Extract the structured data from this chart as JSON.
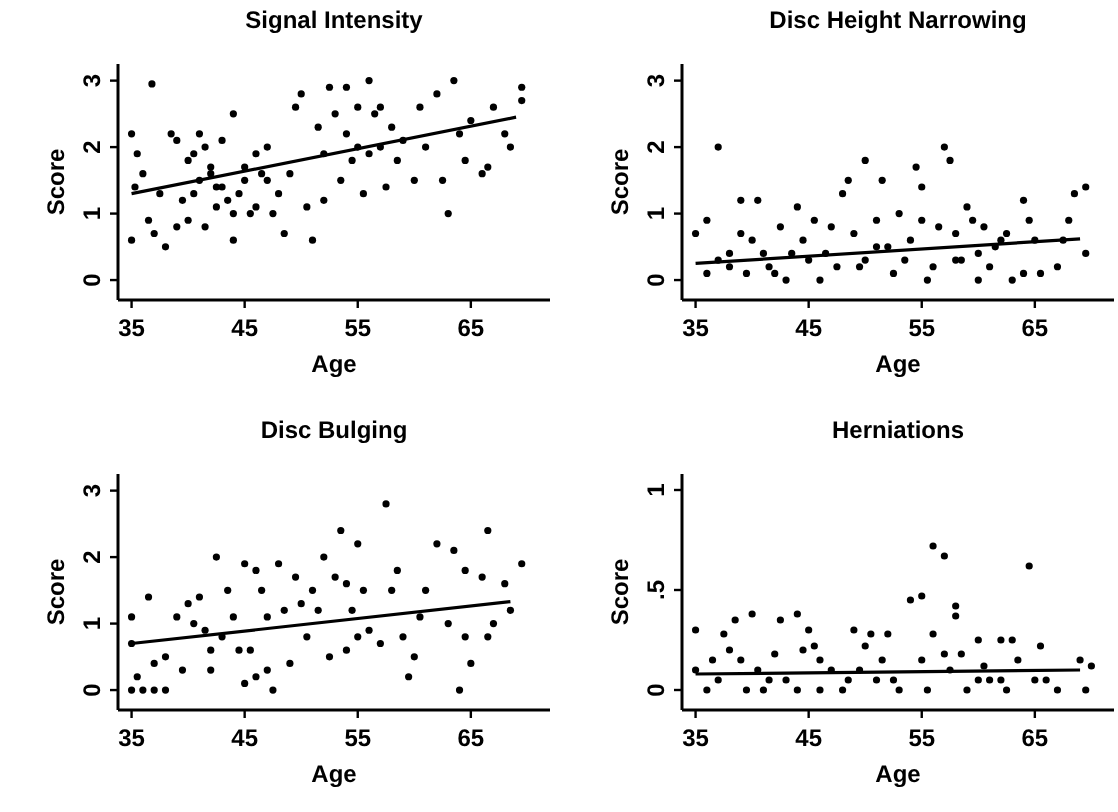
{
  "chart_data": [
    {
      "type": "scatter",
      "title": "Signal Intensity",
      "xlabel": "Age",
      "ylabel": "Score",
      "xlim": [
        33.8,
        72
      ],
      "ylim": [
        -0.3,
        3.25
      ],
      "xticks": [
        35,
        45,
        55,
        65
      ],
      "yticks": [
        0,
        1,
        2,
        3
      ],
      "grid": false,
      "series": [
        {
          "marker": "circle",
          "color": "#000000",
          "x": [
            36.8,
            35,
            35.5,
            36,
            35.3,
            35,
            36.5,
            37,
            38,
            37.5,
            38.5,
            39,
            40,
            40.5,
            41,
            41.5,
            42,
            42.5,
            43,
            43.5,
            44,
            44,
            45,
            45.5,
            46,
            46.5,
            47,
            47.5,
            48,
            48.5,
            49,
            49.5,
            50,
            50.5,
            51,
            51.5,
            52,
            52.5,
            53,
            53.5,
            54,
            54.5,
            55,
            55.5,
            56,
            56.5,
            57,
            57.5,
            58,
            58.5,
            59,
            60,
            60.5,
            61,
            62,
            62.5,
            63,
            63.5,
            64,
            64.5,
            65,
            66,
            66.5,
            67,
            68,
            68.5,
            69.5,
            69.5,
            39.5,
            40.5,
            41,
            42,
            42.5,
            43,
            44.5,
            45,
            46,
            47,
            39,
            40,
            41.5,
            44,
            52,
            54,
            56,
            57,
            55
          ],
          "values": [
            2.95,
            2.2,
            1.9,
            1.6,
            1.4,
            0.6,
            0.9,
            0.7,
            0.5,
            1.3,
            2.2,
            2.1,
            1.8,
            1.9,
            2.2,
            2.0,
            1.7,
            1.4,
            2.1,
            1.2,
            2.5,
            0.6,
            1.5,
            1.0,
            1.9,
            1.6,
            2.0,
            1.0,
            1.3,
            0.7,
            1.6,
            2.6,
            2.8,
            1.1,
            0.6,
            2.3,
            1.2,
            2.9,
            2.5,
            1.5,
            2.9,
            1.8,
            2.6,
            1.3,
            3.0,
            2.5,
            2.0,
            1.4,
            2.3,
            1.8,
            2.1,
            1.5,
            2.6,
            2.0,
            2.8,
            1.5,
            1.0,
            3.0,
            2.2,
            1.8,
            2.4,
            1.6,
            1.7,
            2.6,
            2.2,
            2.0,
            2.9,
            2.7,
            1.2,
            1.3,
            1.5,
            1.6,
            1.1,
            1.4,
            1.3,
            1.7,
            1.1,
            1.5,
            0.8,
            0.9,
            0.8,
            1.0,
            1.9,
            2.2,
            1.9,
            2.6,
            2.0
          ]
        },
        {
          "type": "line",
          "color": "#000000",
          "x": [
            35,
            69
          ],
          "values": [
            1.3,
            2.45
          ]
        }
      ]
    },
    {
      "type": "scatter",
      "title": "Disc Height Narrowing",
      "xlabel": "Age",
      "ylabel": "Score",
      "xlim": [
        33.8,
        72
      ],
      "ylim": [
        -0.3,
        3.25
      ],
      "xticks": [
        35,
        45,
        55,
        65
      ],
      "yticks": [
        0,
        1,
        2,
        3
      ],
      "grid": false,
      "series": [
        {
          "marker": "circle",
          "color": "#000000",
          "x": [
            35,
            36,
            37,
            36,
            37,
            38,
            39,
            39,
            40,
            40.5,
            41,
            42,
            42.5,
            43,
            44,
            44.5,
            45,
            45.5,
            46,
            47,
            47.5,
            48,
            48.5,
            49,
            50,
            50,
            51,
            51.5,
            52,
            52.5,
            53,
            53.5,
            54,
            54.5,
            55,
            55,
            56,
            56.5,
            57,
            57.5,
            58,
            58,
            59,
            59.5,
            60,
            60.5,
            61,
            62,
            62.5,
            63,
            64,
            64,
            64.5,
            65,
            65.5,
            67,
            67.5,
            68,
            68.5,
            69.5,
            69.5,
            38,
            39.5,
            41.5,
            43.5,
            46.5,
            49.5,
            51,
            55.5,
            58.5,
            60,
            61.5
          ],
          "values": [
            0.7,
            0.9,
            2.0,
            0.1,
            0.3,
            0.2,
            0.7,
            1.2,
            0.6,
            1.2,
            0.4,
            0.1,
            0.8,
            0.0,
            1.1,
            0.6,
            0.3,
            0.9,
            0.0,
            0.8,
            0.2,
            1.3,
            1.5,
            0.7,
            1.8,
            0.3,
            0.9,
            1.5,
            0.5,
            0.1,
            1.0,
            0.3,
            0.6,
            1.7,
            1.4,
            0.9,
            0.2,
            0.8,
            2.0,
            1.8,
            0.7,
            0.3,
            1.1,
            0.9,
            0.4,
            0.8,
            0.2,
            0.6,
            0.7,
            0.0,
            1.2,
            0.1,
            0.9,
            0.6,
            0.1,
            0.2,
            0.6,
            0.9,
            1.3,
            1.4,
            0.4,
            0.4,
            0.1,
            0.2,
            0.4,
            0.4,
            0.2,
            0.5,
            0.0,
            0.3,
            0.0,
            0.5
          ]
        },
        {
          "type": "line",
          "color": "#000000",
          "x": [
            35,
            69
          ],
          "values": [
            0.25,
            0.62
          ]
        }
      ]
    },
    {
      "type": "scatter",
      "title": "Disc Bulging",
      "xlabel": "Age",
      "ylabel": "Score",
      "xlim": [
        33.8,
        72
      ],
      "ylim": [
        -0.3,
        3.25
      ],
      "xticks": [
        35,
        45,
        55,
        65
      ],
      "yticks": [
        0,
        1,
        2,
        3
      ],
      "grid": false,
      "series": [
        {
          "marker": "circle",
          "color": "#000000",
          "x": [
            35,
            35,
            35.5,
            35,
            36,
            36.5,
            37,
            37,
            38,
            38,
            39,
            39.5,
            40,
            40.5,
            41,
            41.5,
            42,
            42,
            42.5,
            43,
            43.5,
            44,
            44.5,
            45,
            45,
            45.5,
            46,
            46,
            46.5,
            47,
            47,
            47.5,
            48,
            48.5,
            49,
            49.5,
            50,
            50.5,
            51,
            51.5,
            52,
            52.5,
            53,
            53.5,
            54,
            54,
            54.5,
            55,
            55,
            55.5,
            56,
            57,
            57.5,
            58,
            58.5,
            59,
            59.5,
            60,
            60.5,
            61,
            62,
            63,
            63.5,
            64,
            64.5,
            64.5,
            65,
            66,
            66.5,
            66.5,
            67,
            68,
            69.5,
            68.5
          ],
          "values": [
            1.1,
            0.7,
            0.2,
            0.0,
            0.0,
            1.4,
            0.4,
            0.0,
            0.5,
            0.0,
            1.1,
            0.3,
            1.3,
            1.0,
            1.4,
            0.9,
            0.6,
            0.3,
            2.0,
            0.8,
            1.5,
            1.1,
            0.6,
            1.9,
            0.1,
            0.6,
            1.8,
            0.2,
            1.5,
            1.1,
            0.3,
            0.0,
            1.9,
            1.2,
            0.4,
            1.7,
            1.3,
            0.8,
            1.5,
            1.2,
            2.0,
            0.5,
            1.7,
            2.4,
            1.6,
            0.6,
            1.2,
            2.2,
            0.8,
            1.5,
            0.9,
            0.7,
            2.8,
            1.5,
            1.8,
            0.8,
            0.2,
            0.5,
            1.1,
            1.5,
            2.2,
            1.0,
            2.1,
            0.0,
            1.8,
            0.8,
            0.4,
            1.7,
            0.8,
            2.4,
            1.0,
            1.6,
            1.9,
            1.2
          ]
        },
        {
          "type": "line",
          "color": "#000000",
          "x": [
            35,
            68.5
          ],
          "values": [
            0.7,
            1.33
          ]
        }
      ]
    },
    {
      "type": "scatter",
      "title": "Herniations",
      "xlabel": "Age",
      "ylabel": "Score",
      "xlim": [
        33.8,
        72
      ],
      "ylim": [
        -0.1,
        1.08
      ],
      "xticks": [
        35,
        45,
        55,
        65
      ],
      "yticks": [
        0,
        {
          "value": 0.5,
          "label": ".5"
        },
        1
      ],
      "grid": false,
      "series": [
        {
          "marker": "circle",
          "color": "#000000",
          "x": [
            35,
            35,
            36,
            36.5,
            37.5,
            38,
            38.5,
            39,
            39.5,
            40,
            40.5,
            41,
            42,
            42.5,
            43,
            44,
            44.5,
            45,
            45.5,
            46,
            46,
            47,
            48,
            49,
            49.5,
            50,
            50.5,
            51,
            51.5,
            52,
            53,
            54,
            55,
            55,
            56,
            56,
            57,
            57,
            57.5,
            58,
            58,
            58.5,
            59,
            60,
            60.5,
            61,
            62,
            62.5,
            63,
            63.5,
            64.5,
            65,
            65.5,
            67,
            69,
            69.5,
            70,
            37,
            41.5,
            44,
            48.5,
            52.5,
            55.5,
            60,
            62,
            66
          ],
          "values": [
            0.3,
            0.1,
            0.0,
            0.15,
            0.28,
            0.2,
            0.35,
            0.15,
            0.0,
            0.38,
            0.1,
            0.0,
            0.18,
            0.35,
            0.05,
            0.38,
            0.2,
            0.3,
            0.22,
            0.15,
            0.0,
            0.1,
            0.0,
            0.3,
            0.1,
            0.22,
            0.28,
            0.05,
            0.15,
            0.28,
            0.0,
            0.45,
            0.47,
            0.15,
            0.72,
            0.28,
            0.67,
            0.18,
            0.1,
            0.42,
            0.37,
            0.18,
            0.0,
            0.25,
            0.12,
            0.05,
            0.25,
            0.0,
            0.25,
            0.15,
            0.62,
            0.05,
            0.22,
            0.0,
            0.15,
            0.0,
            0.12,
            0.05,
            0.05,
            0.0,
            0.05,
            0.05,
            0.0,
            0.05,
            0.05,
            0.05
          ]
        },
        {
          "type": "line",
          "color": "#000000",
          "x": [
            35,
            69
          ],
          "values": [
            0.08,
            0.1
          ]
        }
      ]
    }
  ]
}
